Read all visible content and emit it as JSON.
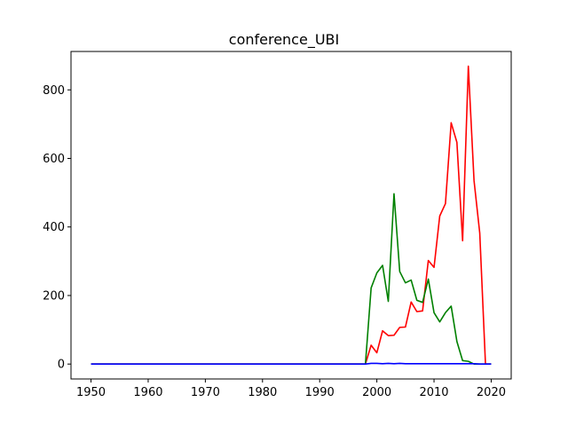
{
  "chart_data": {
    "type": "line",
    "title": "conference_UBI",
    "xlabel": "",
    "ylabel": "",
    "xlim": [
      1946.5,
      2023.5
    ],
    "ylim": [
      -43.5,
      912
    ],
    "grid": false,
    "xticks": [
      1950,
      1960,
      1970,
      1980,
      1990,
      2000,
      2010,
      2020
    ],
    "yticks": [
      0,
      200,
      400,
      600,
      800
    ],
    "x": [
      1950,
      1951,
      1952,
      1953,
      1954,
      1955,
      1956,
      1957,
      1958,
      1959,
      1960,
      1961,
      1962,
      1963,
      1964,
      1965,
      1966,
      1967,
      1968,
      1969,
      1970,
      1971,
      1972,
      1973,
      1974,
      1975,
      1976,
      1977,
      1978,
      1979,
      1980,
      1981,
      1982,
      1983,
      1984,
      1985,
      1986,
      1987,
      1988,
      1989,
      1990,
      1991,
      1992,
      1993,
      1994,
      1995,
      1996,
      1997,
      1998,
      1999,
      2000,
      2001,
      2002,
      2003,
      2004,
      2005,
      2006,
      2007,
      2008,
      2009,
      2010,
      2011,
      2012,
      2013,
      2014,
      2015,
      2016,
      2017,
      2018,
      2019,
      2020
    ],
    "series": [
      {
        "color": "#ff0000",
        "values": [
          0,
          0,
          0,
          0,
          0,
          0,
          0,
          0,
          0,
          0,
          0,
          0,
          0,
          0,
          0,
          0,
          0,
          0,
          0,
          0,
          0,
          0,
          0,
          0,
          0,
          0,
          0,
          0,
          0,
          0,
          0,
          0,
          0,
          0,
          0,
          0,
          0,
          0,
          0,
          0,
          0,
          0,
          0,
          0,
          0,
          0,
          0,
          0,
          0,
          55,
          33,
          97,
          83,
          84,
          107,
          108,
          181,
          153,
          155,
          302,
          282,
          432,
          468,
          704,
          647,
          360,
          869,
          535,
          382,
          0,
          0
        ]
      },
      {
        "color": "#008000",
        "values": [
          0,
          0,
          0,
          0,
          0,
          0,
          0,
          0,
          0,
          0,
          0,
          0,
          0,
          0,
          0,
          0,
          0,
          0,
          0,
          0,
          0,
          0,
          0,
          0,
          0,
          0,
          0,
          0,
          0,
          0,
          0,
          0,
          0,
          0,
          0,
          0,
          0,
          0,
          0,
          0,
          0,
          0,
          0,
          0,
          0,
          0,
          0,
          0,
          0,
          222,
          266,
          288,
          183,
          497,
          270,
          237,
          245,
          186,
          180,
          248,
          150,
          123,
          150,
          169,
          66,
          10,
          8,
          0,
          0,
          0,
          0
        ]
      },
      {
        "color": "#0000ff",
        "values": [
          0,
          0,
          0,
          0,
          0,
          0,
          0,
          0,
          0,
          0,
          0,
          0,
          0,
          0,
          0,
          0,
          0,
          0,
          0,
          0,
          0,
          0,
          0,
          0,
          0,
          0,
          0,
          0,
          0,
          0,
          0,
          0,
          0,
          0,
          0,
          0,
          0,
          0,
          0,
          0,
          0,
          0,
          0,
          0,
          0,
          0,
          0,
          0,
          0,
          2,
          2,
          1,
          2,
          1,
          2,
          1,
          1,
          1,
          1,
          1,
          1,
          1,
          1,
          1,
          1,
          1,
          1,
          1,
          0,
          0,
          0
        ]
      }
    ]
  }
}
